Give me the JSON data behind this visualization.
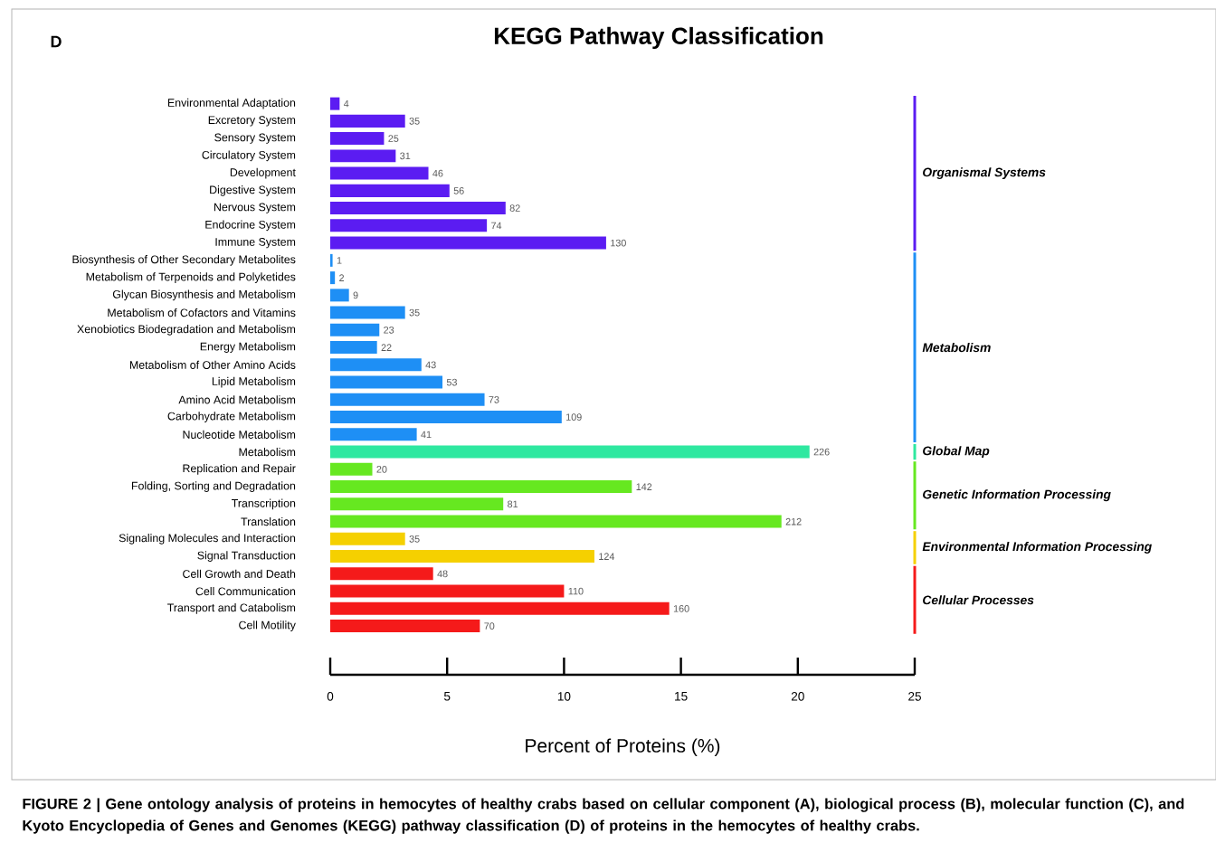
{
  "chart_data": {
    "type": "bar",
    "orientation": "horizontal",
    "title": "KEGG Pathway Classification",
    "xlabel": "Percent of Proteins (%)",
    "categories": [
      "Environmental Adaptation",
      "Excretory System",
      "Sensory System",
      "Circulatory System",
      "Development",
      "Digestive System",
      "Nervous System",
      "Endocrine System",
      "Immune System",
      "Biosynthesis of Other Secondary Metabolites",
      "Metabolism of Terpenoids and Polyketides",
      "Glycan Biosynthesis and Metabolism",
      "Metabolism of Cofactors and Vitamins",
      "Xenobiotics Biodegradation and Metabolism",
      "Energy Metabolism",
      "Metabolism of Other Amino Acids",
      "Lipid Metabolism",
      "Amino Acid Metabolism",
      "Carbohydrate Metabolism",
      "Nucleotide Metabolism",
      "Metabolism",
      "Replication and Repair",
      "Folding, Sorting and Degradation",
      "Transcription",
      "Translation",
      "Signaling Molecules and Interaction",
      "Signal Transduction",
      "Cell Growth and Death",
      "Cell Communication",
      "Transport and Catabolism",
      "Cell Motility"
    ],
    "values": [
      0.4,
      3.2,
      2.3,
      2.8,
      4.2,
      5.1,
      7.5,
      6.7,
      11.8,
      0.1,
      0.2,
      0.8,
      3.2,
      2.1,
      2.0,
      3.9,
      4.8,
      6.6,
      9.9,
      3.7,
      20.5,
      1.8,
      12.9,
      7.4,
      19.3,
      3.2,
      11.3,
      4.4,
      10.0,
      14.5,
      6.4
    ],
    "colors": [
      "#5b1cf2",
      "#5b1cf2",
      "#5b1cf2",
      "#5b1cf2",
      "#5b1cf2",
      "#5b1cf2",
      "#5b1cf2",
      "#5b1cf2",
      "#5b1cf2",
      "#1e8ff5",
      "#1e8ff5",
      "#1e8ff5",
      "#1e8ff5",
      "#1e8ff5",
      "#1e8ff5",
      "#1e8ff5",
      "#1e8ff5",
      "#1e8ff5",
      "#1e8ff5",
      "#1e8ff5",
      "#2ee8a0",
      "#66e820",
      "#66e820",
      "#66e820",
      "#66e820",
      "#f5d000",
      "#f5d000",
      "#f51a1a",
      "#f51a1a",
      "#f51a1a",
      "#f51a1a"
    ],
    "xlim": [
      0,
      25
    ],
    "xticks": [
      0,
      5,
      10,
      15,
      20,
      25
    ],
    "grid": false,
    "annotations": [
      {
        "text": "4",
        "x": 0.4,
        "y": "Environmental Adaptation"
      },
      {
        "text": "35",
        "x": 3.2,
        "y": "Excretory System"
      },
      {
        "text": "25",
        "x": 2.3,
        "y": "Sensory System"
      },
      {
        "text": "31",
        "x": 2.8,
        "y": "Circulatory System"
      },
      {
        "text": "46",
        "x": 4.2,
        "y": "Development"
      },
      {
        "text": "56",
        "x": 5.1,
        "y": "Digestive System"
      },
      {
        "text": "82",
        "x": 7.5,
        "y": "Nervous System"
      },
      {
        "text": "74",
        "x": 6.7,
        "y": "Endocrine System"
      },
      {
        "text": "130",
        "x": 11.8,
        "y": "Immune System"
      },
      {
        "text": "1",
        "x": 0.1,
        "y": "Biosynthesis of Other Secondary Metabolites"
      },
      {
        "text": "2",
        "x": 0.2,
        "y": "Metabolism of Terpenoids and Polyketides"
      },
      {
        "text": "9",
        "x": 0.8,
        "y": "Glycan Biosynthesis and Metabolism"
      },
      {
        "text": "35",
        "x": 3.2,
        "y": "Metabolism of Cofactors and Vitamins"
      },
      {
        "text": "23",
        "x": 2.1,
        "y": "Xenobiotics Biodegradation and Metabolism"
      },
      {
        "text": "22",
        "x": 2.0,
        "y": "Energy Metabolism"
      },
      {
        "text": "43",
        "x": 3.9,
        "y": "Metabolism of Other Amino Acids"
      },
      {
        "text": "53",
        "x": 4.8,
        "y": "Lipid Metabolism"
      },
      {
        "text": "73",
        "x": 6.6,
        "y": "Amino Acid Metabolism"
      },
      {
        "text": "109",
        "x": 9.9,
        "y": "Carbohydrate Metabolism"
      },
      {
        "text": "41",
        "x": 3.7,
        "y": "Nucleotide Metabolism"
      },
      {
        "text": "226",
        "x": 20.5,
        "y": "Metabolism"
      },
      {
        "text": "20",
        "x": 1.8,
        "y": "Replication and Repair"
      },
      {
        "text": "142",
        "x": 12.9,
        "y": "Folding, Sorting and Degradation"
      },
      {
        "text": "81",
        "x": 7.4,
        "y": "Transcription"
      },
      {
        "text": "212",
        "x": 19.3,
        "y": "Translation"
      },
      {
        "text": "35",
        "x": 3.2,
        "y": "Signaling Molecules and Interaction"
      },
      {
        "text": "124",
        "x": 11.3,
        "y": "Signal Transduction"
      },
      {
        "text": "48",
        "x": 4.4,
        "y": "Cell Growth and Death"
      },
      {
        "text": "110",
        "x": 10.0,
        "y": "Cell Communication"
      },
      {
        "text": "160",
        "x": 14.5,
        "y": "Transport and Catabolism"
      },
      {
        "text": "70",
        "x": 6.4,
        "y": "Cell Motility"
      },
      "D",
      "Organismal Systems",
      "Metabolism",
      "Global Map",
      "Genetic Information Processing",
      "Environmental Information Processing",
      "Cellular Processes",
      "FIGURE 2 | Gene ontology analysis of proteins in hemocytes of healthy crabs based on cellular component (A), biological process (B), molecular function (C), and Kyoto Encyclopedia of Genes and Genomes (KEGG) pathway classification (D) of proteins in the hemocytes of healthy crabs."
    ]
  }
}
